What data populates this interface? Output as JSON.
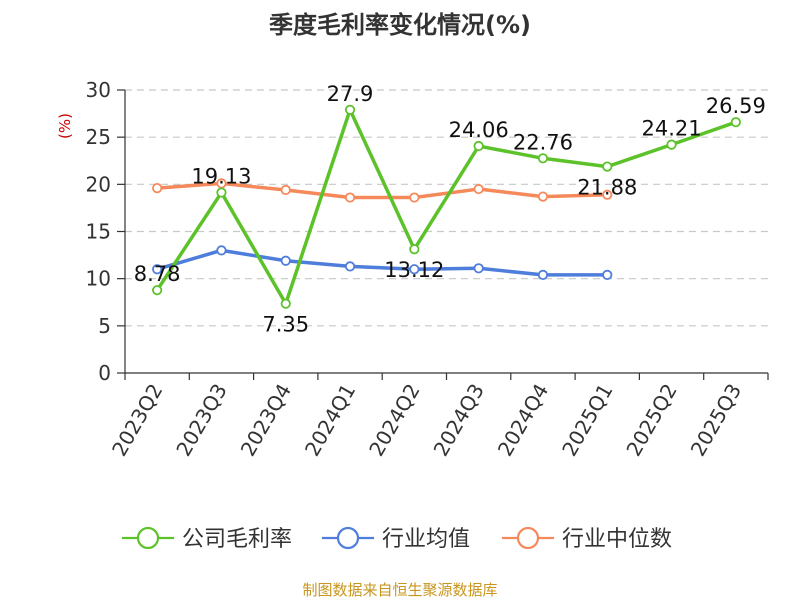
{
  "chart_data": {
    "type": "line",
    "title": "季度毛利率变化情况(%)",
    "ylabel": "(%)",
    "xlabel": "",
    "ylim": [
      0,
      30
    ],
    "yticks": [
      0,
      5,
      10,
      15,
      20,
      25,
      30
    ],
    "grid": true,
    "legend_position": "bottom",
    "categories": [
      "2023Q2",
      "2023Q3",
      "2023Q4",
      "2024Q1",
      "2024Q2",
      "2024Q3",
      "2024Q4",
      "2025Q1",
      "2025Q2",
      "2025Q3"
    ],
    "series": [
      {
        "name": "公司毛利率",
        "color": "#5cc22a",
        "values": [
          8.78,
          19.13,
          7.35,
          27.9,
          13.12,
          24.06,
          22.76,
          21.88,
          24.21,
          26.59
        ],
        "labels": [
          "8.78",
          "19.13",
          "7.35",
          "27.9",
          "13.12",
          "24.06",
          "22.76",
          "21.88",
          "24.21",
          "26.59"
        ]
      },
      {
        "name": "行业均值",
        "color": "#4f7ddb",
        "values": [
          11.0,
          13.0,
          11.9,
          11.3,
          11.0,
          11.1,
          10.4,
          10.4,
          null,
          null
        ]
      },
      {
        "name": "行业中位数",
        "color": "#f5895a",
        "values": [
          19.6,
          20.1,
          19.4,
          18.6,
          18.6,
          19.5,
          18.7,
          18.9,
          null,
          null
        ]
      }
    ]
  },
  "source": "制图数据来自恒生聚源数据库"
}
